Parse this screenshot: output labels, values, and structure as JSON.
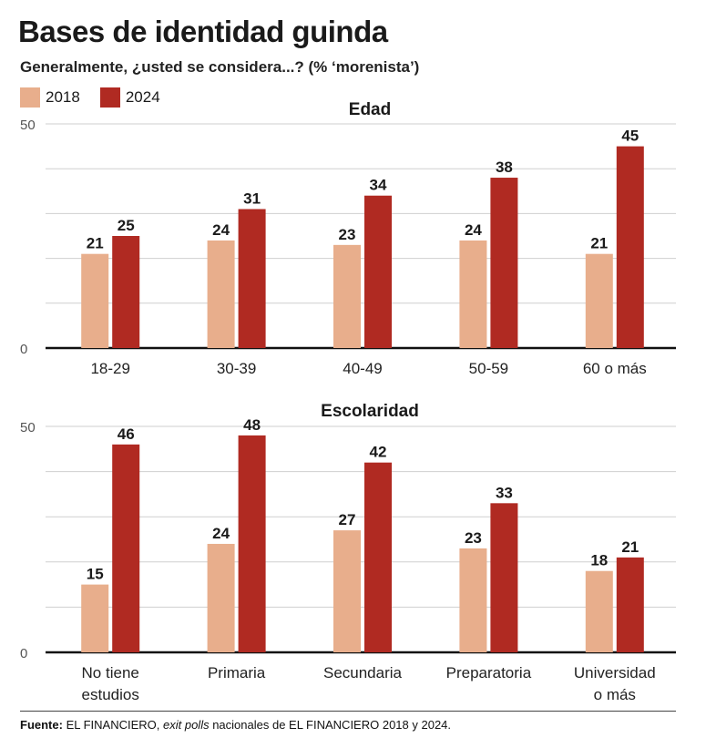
{
  "title": "Bases de identidad guinda",
  "subtitle": "Generalmente, ¿usted se considera...? (% ‘morenista’)",
  "legend": [
    {
      "label": "2018",
      "color": "#e8ae8c"
    },
    {
      "label": "2024",
      "color": "#b02a22"
    }
  ],
  "footer": {
    "source_label": "Fuente:",
    "source_pre": " EL FINANCIERO, ",
    "source_italic": "exit polls",
    "source_post": " nacionales de EL FINANCIERO 2018 y 2024."
  },
  "chart_data": [
    {
      "type": "bar",
      "title": "Edad",
      "categories": [
        [
          "18-29"
        ],
        [
          "30-39"
        ],
        [
          "40-49"
        ],
        [
          "50-59"
        ],
        [
          "60 o más"
        ]
      ],
      "series": [
        {
          "name": "2018",
          "values": [
            21,
            24,
            23,
            24,
            21
          ]
        },
        {
          "name": "2024",
          "values": [
            25,
            31,
            34,
            38,
            45
          ]
        }
      ],
      "ylim": [
        0,
        50
      ],
      "yticks": [
        0,
        50
      ],
      "grid": true
    },
    {
      "type": "bar",
      "title": "Escolaridad",
      "categories": [
        [
          "No tiene",
          "estudios"
        ],
        [
          "Primaria"
        ],
        [
          "Secundaria"
        ],
        [
          "Preparatoria"
        ],
        [
          "Universidad",
          "o más"
        ]
      ],
      "series": [
        {
          "name": "2018",
          "values": [
            15,
            24,
            27,
            23,
            18
          ]
        },
        {
          "name": "2024",
          "values": [
            46,
            48,
            42,
            33,
            21
          ]
        }
      ],
      "ylim": [
        0,
        50
      ],
      "yticks": [
        0,
        50
      ],
      "grid": true
    }
  ]
}
